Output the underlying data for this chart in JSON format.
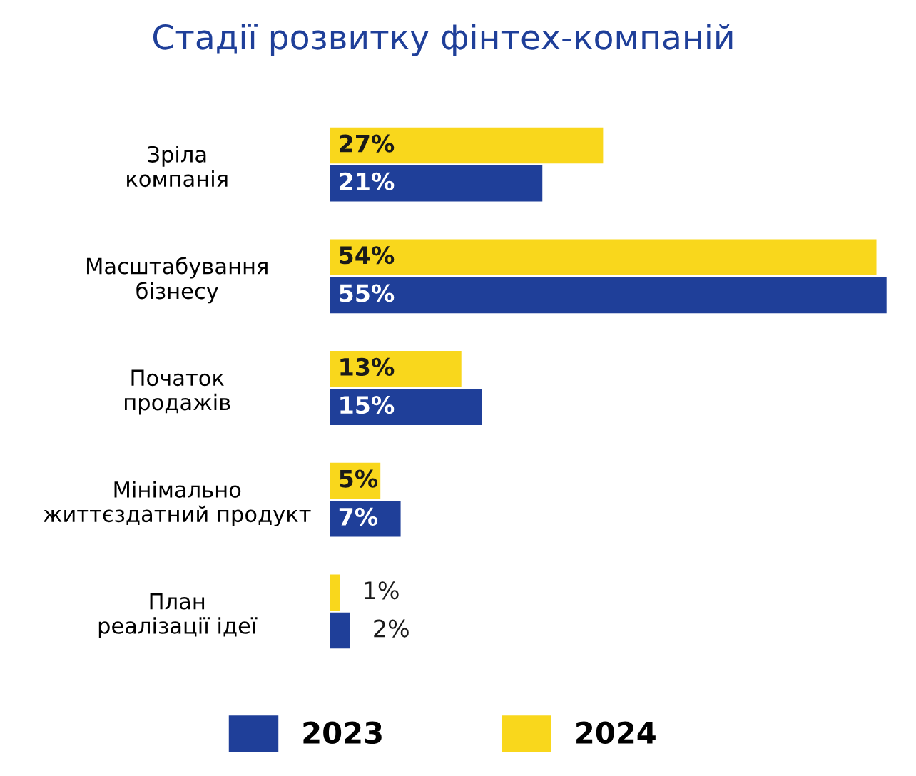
{
  "chart_data": {
    "type": "bar",
    "orientation": "horizontal",
    "title": "Стадії розвитку фінтех-компаній",
    "categories": [
      "Зріла\nкомпанія",
      "Масштабування\nбізнесу",
      "Початок\nпродажів",
      "Мінімально\nжиттєздатний продукт",
      "План\nреалізації ідеї"
    ],
    "series": [
      {
        "name": "2023",
        "color": "#1f3f99",
        "values": [
          21,
          55,
          15,
          7,
          2
        ],
        "value_labels": [
          "21%",
          "55%",
          "15%",
          "7%",
          "2%"
        ]
      },
      {
        "name": "2024",
        "color": "#f9d71c",
        "values": [
          27,
          54,
          13,
          5,
          1
        ],
        "value_labels": [
          "27%",
          "54%",
          "13%",
          "5%",
          "1%"
        ]
      }
    ],
    "legend": "bottom",
    "grid": false
  }
}
